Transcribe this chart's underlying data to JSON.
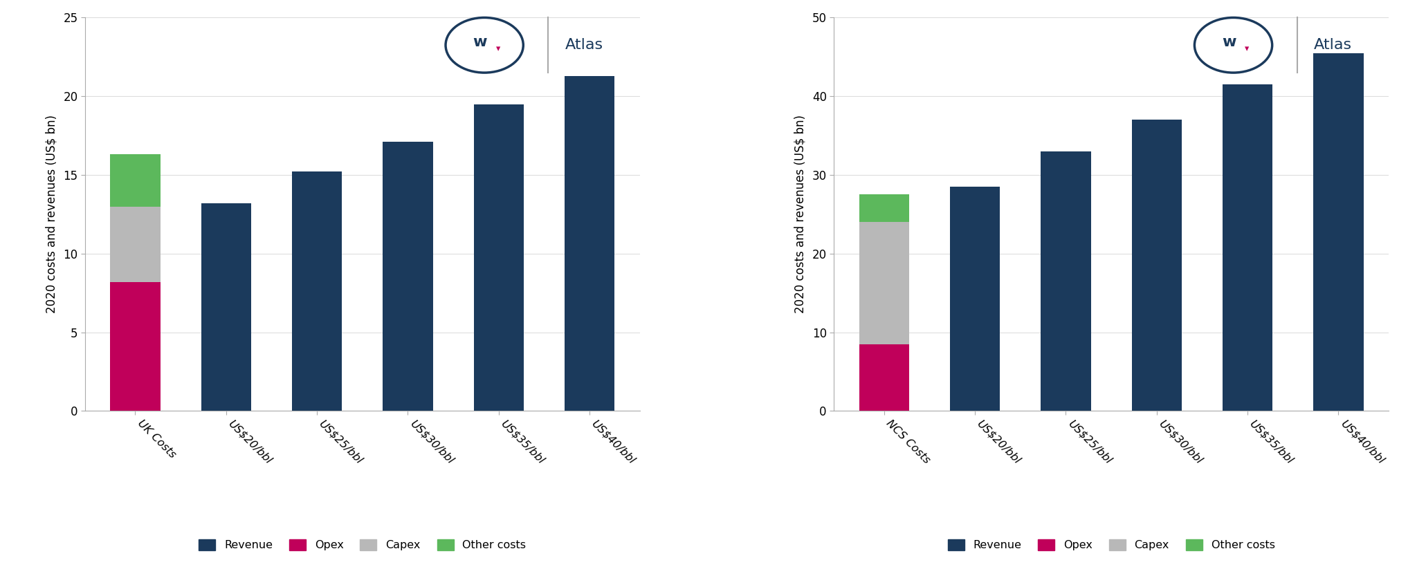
{
  "left": {
    "ylabel": "2020 costs and revenues (US$ bn)",
    "categories": [
      "UK Costs",
      "US$20/bbl",
      "US$25/bbl",
      "US$30/bbl",
      "US$35/bbl",
      "US$40/bbl"
    ],
    "revenue": [
      0,
      13.2,
      15.2,
      17.1,
      19.5,
      21.3
    ],
    "opex": [
      8.2,
      0,
      0,
      0,
      0,
      0
    ],
    "capex": [
      4.8,
      0,
      0,
      0,
      0,
      0
    ],
    "other_costs": [
      3.3,
      0,
      0,
      0,
      0,
      0
    ],
    "ylim": [
      0,
      25
    ],
    "yticks": [
      0,
      5,
      10,
      15,
      20,
      25
    ]
  },
  "right": {
    "ylabel": "2020 costs and revenues (US$ bn)",
    "categories": [
      "NCS Costs",
      "US$20/bbl",
      "US$25/bbl",
      "US$30/bbl",
      "US$35/bbl",
      "US$40/bbl"
    ],
    "revenue": [
      0,
      28.5,
      33.0,
      37.0,
      41.5,
      45.5
    ],
    "opex": [
      8.5,
      0,
      0,
      0,
      0,
      0
    ],
    "capex": [
      15.5,
      0,
      0,
      0,
      0,
      0
    ],
    "other_costs": [
      3.5,
      0,
      0,
      0,
      0,
      0
    ],
    "ylim": [
      0,
      50
    ],
    "yticks": [
      0,
      10,
      20,
      30,
      40,
      50
    ]
  },
  "colors": {
    "revenue": "#1b3a5c",
    "opex": "#c0005a",
    "capex": "#b8b8b8",
    "other_costs": "#5cb85c"
  },
  "legend_labels": [
    "Revenue",
    "Opex",
    "Capex",
    "Other costs"
  ],
  "background_color": "#ffffff",
  "plot_bg_color": "#ffffff",
  "bar_width": 0.55,
  "logo_circle_color": "#1b3a5c",
  "logo_text_color": "#1b3a5c",
  "logo_triangle_color": "#c0005a",
  "logo_atlas_color": "#1b3a5c",
  "separator_color": "#aaaaaa"
}
